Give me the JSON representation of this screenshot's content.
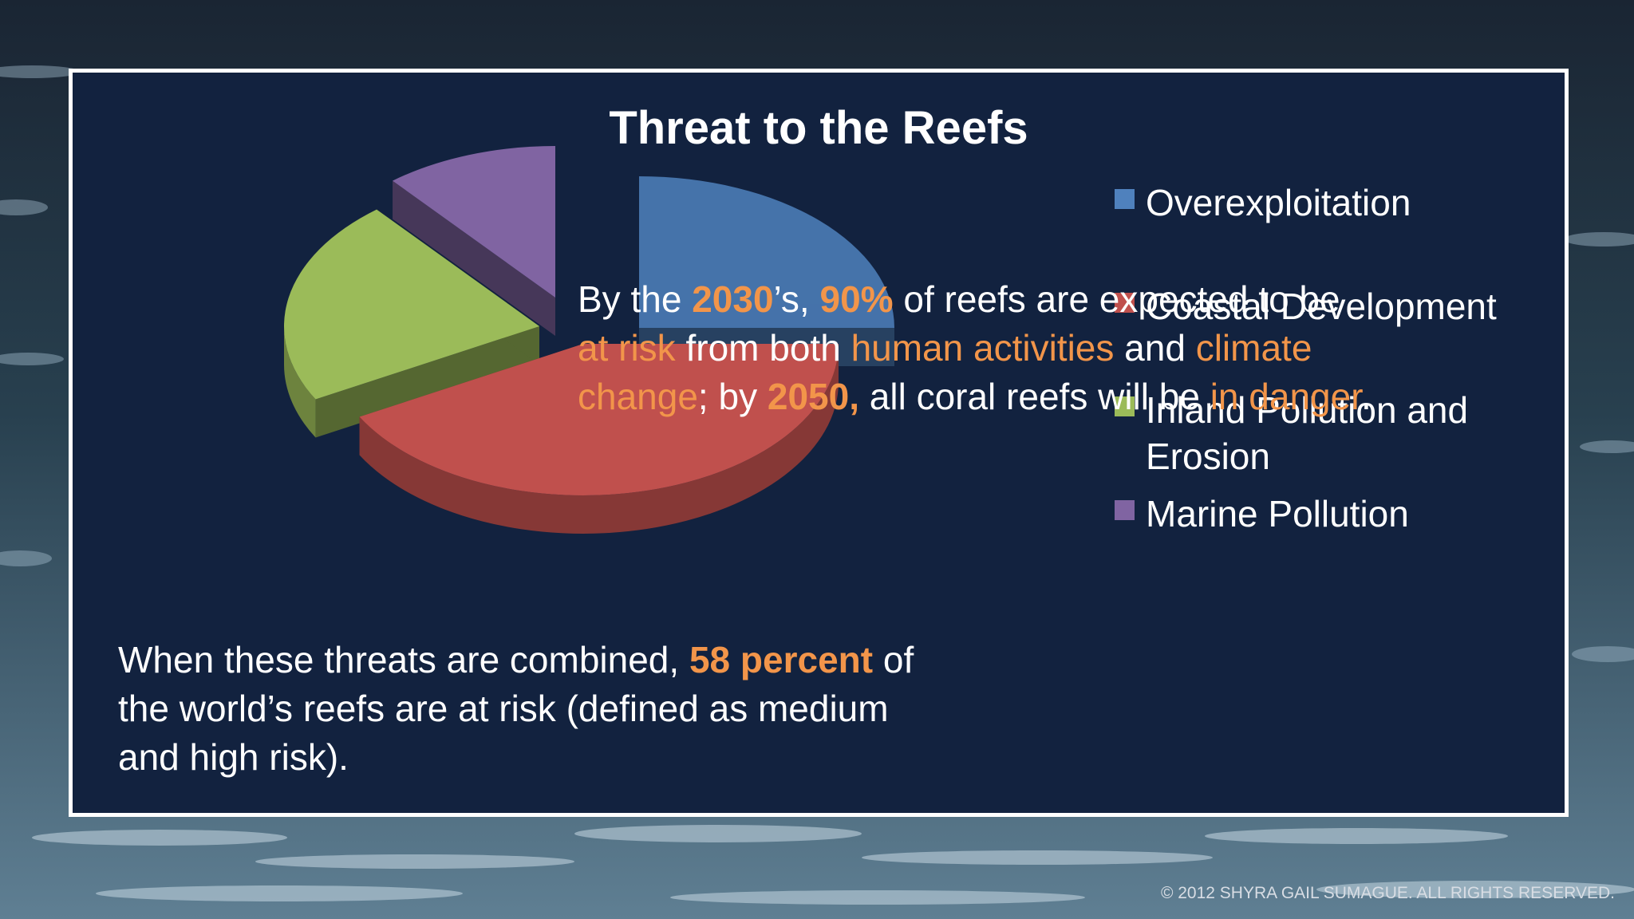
{
  "colors": {
    "frame": "#ffffff",
    "slide_background": "#12223f",
    "highlight": "#f2954a"
  },
  "chart_data": {
    "type": "pie",
    "title": "Threat to the Reefs",
    "series": [
      {
        "name": "Overexploitation",
        "value": 25,
        "color": "#4f81bd",
        "exploded": true,
        "faded": true
      },
      {
        "name": "Coastal Development",
        "value": 42,
        "color": "#c0504d",
        "exploded": false,
        "faded": false
      },
      {
        "name": "Inland Pollution and\nErosion",
        "value": 22,
        "color": "#9bbb59",
        "exploded": true,
        "faded": false
      },
      {
        "name": "Marine Pollution",
        "value": 11,
        "color": "#8064a2",
        "exploded": true,
        "faded": false
      }
    ],
    "legend_position": "right",
    "style": "3d-exploded"
  },
  "overlay_text": {
    "p1": "By the ",
    "y2030": "2030",
    "p2": "’s, ",
    "pct90": "90%",
    "p3": " of reefs are expected to be ",
    "at_risk": "at risk",
    "p4": " from both ",
    "human": "human activities",
    "p5": " and ",
    "climate": "climate change",
    "p6": "; by ",
    "y2050": "2050,",
    "p7": " all coral reefs will be ",
    "danger": "in danger",
    "p8": "."
  },
  "bottom_text": {
    "p1": "When these threats are combined, ",
    "pct58": "58 percent",
    "p2": " of the world’s reefs are at risk (defined as medium and high risk)."
  },
  "copyright": "© 2012 SHYRA GAIL SUMAGUE. ALL RIGHTS RESERVED."
}
